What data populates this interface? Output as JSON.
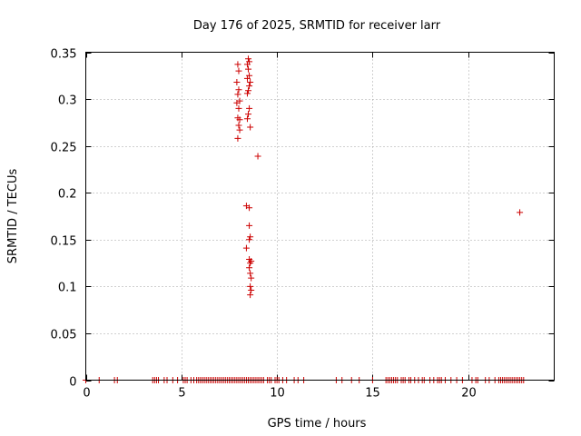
{
  "chart_data": {
    "type": "scatter",
    "title": "Day 176 of 2025, SRMTID for receiver larr",
    "xlabel": "GPS time / hours",
    "ylabel": "SRMTID / TECUs",
    "xlim": [
      0,
      24.5
    ],
    "ylim": [
      0,
      0.35
    ],
    "xticks": [
      0,
      5,
      10,
      15,
      20
    ],
    "yticks": [
      0,
      0.05,
      0.1,
      0.15,
      0.2,
      0.25,
      0.3,
      0.35
    ],
    "xtick_labels": [
      "0",
      "5",
      "10",
      "15",
      "20"
    ],
    "ytick_labels": [
      "0",
      "0.05",
      "0.1",
      "0.15",
      "0.2",
      "0.25",
      "0.3",
      "0.35"
    ],
    "grid": true,
    "marker": "+",
    "color": "#cc0000",
    "series": [
      {
        "name": "SRMTID",
        "points": [
          [
            7.95,
            0.337
          ],
          [
            8.0,
            0.33
          ],
          [
            7.9,
            0.318
          ],
          [
            8.0,
            0.31
          ],
          [
            7.95,
            0.305
          ],
          [
            8.05,
            0.298
          ],
          [
            7.9,
            0.296
          ],
          [
            8.0,
            0.29
          ],
          [
            7.95,
            0.28
          ],
          [
            8.05,
            0.278
          ],
          [
            8.0,
            0.272
          ],
          [
            8.05,
            0.267
          ],
          [
            7.95,
            0.258
          ],
          [
            8.5,
            0.343
          ],
          [
            8.55,
            0.34
          ],
          [
            8.45,
            0.337
          ],
          [
            8.5,
            0.332
          ],
          [
            8.55,
            0.325
          ],
          [
            8.45,
            0.322
          ],
          [
            8.6,
            0.318
          ],
          [
            8.55,
            0.314
          ],
          [
            8.5,
            0.309
          ],
          [
            8.45,
            0.306
          ],
          [
            8.55,
            0.29
          ],
          [
            8.5,
            0.284
          ],
          [
            8.45,
            0.279
          ],
          [
            8.6,
            0.27
          ],
          [
            9.0,
            0.239
          ],
          [
            8.4,
            0.186
          ],
          [
            8.55,
            0.184
          ],
          [
            8.55,
            0.165
          ],
          [
            8.6,
            0.153
          ],
          [
            8.55,
            0.15
          ],
          [
            8.4,
            0.141
          ],
          [
            8.55,
            0.129
          ],
          [
            8.65,
            0.127
          ],
          [
            8.6,
            0.125
          ],
          [
            8.55,
            0.12
          ],
          [
            8.6,
            0.114
          ],
          [
            8.65,
            0.109
          ],
          [
            8.6,
            0.1
          ],
          [
            8.65,
            0.096
          ],
          [
            8.6,
            0.091
          ],
          [
            22.7,
            0.179
          ],
          [
            0.0,
            0
          ],
          [
            0.7,
            0
          ],
          [
            1.5,
            0
          ],
          [
            1.65,
            0
          ],
          [
            3.5,
            0
          ],
          [
            3.6,
            0
          ],
          [
            3.7,
            0
          ],
          [
            3.8,
            0
          ],
          [
            4.1,
            0
          ],
          [
            4.25,
            0
          ],
          [
            4.55,
            0
          ],
          [
            4.8,
            0
          ],
          [
            5.1,
            0
          ],
          [
            5.2,
            0
          ],
          [
            5.3,
            0
          ],
          [
            5.5,
            0
          ],
          [
            5.65,
            0
          ],
          [
            5.8,
            0
          ],
          [
            5.9,
            0
          ],
          [
            6.0,
            0
          ],
          [
            6.1,
            0
          ],
          [
            6.2,
            0
          ],
          [
            6.3,
            0
          ],
          [
            6.4,
            0
          ],
          [
            6.5,
            0
          ],
          [
            6.6,
            0
          ],
          [
            6.7,
            0
          ],
          [
            6.8,
            0
          ],
          [
            6.9,
            0
          ],
          [
            7.0,
            0
          ],
          [
            7.1,
            0
          ],
          [
            7.2,
            0
          ],
          [
            7.3,
            0
          ],
          [
            7.4,
            0
          ],
          [
            7.5,
            0
          ],
          [
            7.6,
            0
          ],
          [
            7.7,
            0
          ],
          [
            7.8,
            0
          ],
          [
            7.9,
            0
          ],
          [
            8.0,
            0
          ],
          [
            8.1,
            0
          ],
          [
            8.2,
            0
          ],
          [
            8.3,
            0
          ],
          [
            8.4,
            0
          ],
          [
            8.5,
            0
          ],
          [
            8.6,
            0
          ],
          [
            8.7,
            0
          ],
          [
            8.8,
            0
          ],
          [
            8.9,
            0
          ],
          [
            9.0,
            0
          ],
          [
            9.1,
            0
          ],
          [
            9.2,
            0
          ],
          [
            9.3,
            0
          ],
          [
            9.5,
            0
          ],
          [
            9.6,
            0
          ],
          [
            9.7,
            0
          ],
          [
            9.9,
            0
          ],
          [
            10.0,
            0
          ],
          [
            10.1,
            0
          ],
          [
            10.3,
            0
          ],
          [
            10.5,
            0
          ],
          [
            10.9,
            0
          ],
          [
            11.1,
            0
          ],
          [
            11.4,
            0
          ],
          [
            13.1,
            0
          ],
          [
            13.4,
            0
          ],
          [
            13.9,
            0
          ],
          [
            14.3,
            0
          ],
          [
            15.0,
            0
          ],
          [
            15.7,
            0
          ],
          [
            15.8,
            0
          ],
          [
            15.9,
            0
          ],
          [
            16.0,
            0
          ],
          [
            16.1,
            0
          ],
          [
            16.2,
            0
          ],
          [
            16.3,
            0
          ],
          [
            16.5,
            0
          ],
          [
            16.6,
            0
          ],
          [
            16.7,
            0
          ],
          [
            16.9,
            0
          ],
          [
            17.0,
            0
          ],
          [
            17.2,
            0
          ],
          [
            17.4,
            0
          ],
          [
            17.6,
            0
          ],
          [
            17.7,
            0
          ],
          [
            18.0,
            0
          ],
          [
            18.2,
            0
          ],
          [
            18.4,
            0
          ],
          [
            18.5,
            0
          ],
          [
            18.6,
            0
          ],
          [
            18.8,
            0
          ],
          [
            19.1,
            0
          ],
          [
            19.4,
            0
          ],
          [
            19.7,
            0
          ],
          [
            20.2,
            0
          ],
          [
            20.4,
            0
          ],
          [
            20.5,
            0
          ],
          [
            20.9,
            0
          ],
          [
            21.1,
            0
          ],
          [
            21.4,
            0
          ],
          [
            21.6,
            0
          ],
          [
            21.7,
            0
          ],
          [
            21.8,
            0
          ],
          [
            21.9,
            0
          ],
          [
            22.0,
            0
          ],
          [
            22.1,
            0
          ],
          [
            22.2,
            0
          ],
          [
            22.3,
            0
          ],
          [
            22.4,
            0
          ],
          [
            22.5,
            0
          ],
          [
            22.6,
            0
          ],
          [
            22.7,
            0
          ],
          [
            22.8,
            0
          ],
          [
            22.9,
            0
          ]
        ]
      }
    ]
  }
}
